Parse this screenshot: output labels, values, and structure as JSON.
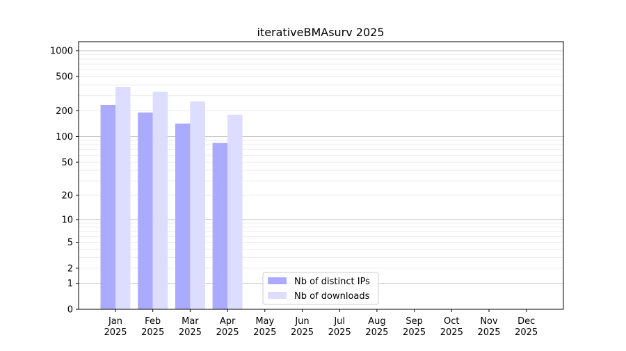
{
  "chart_data": {
    "type": "bar",
    "title": "iterativeBMAsurv 2025",
    "xlabel": "",
    "ylabel": "",
    "y_scale": "log10(1+y)",
    "ylim": [
      0,
      1300
    ],
    "yticks": [
      0,
      1,
      2,
      5,
      10,
      20,
      50,
      100,
      200,
      500,
      1000
    ],
    "grid": true,
    "legend_position": "bottom-center",
    "categories": [
      "Jan\n2025",
      "Feb\n2025",
      "Mar\n2025",
      "Apr\n2025",
      "May\n2025",
      "Jun\n2025",
      "Jul\n2025",
      "Aug\n2025",
      "Sep\n2025",
      "Oct\n2025",
      "Nov\n2025",
      "Dec\n2025"
    ],
    "series": [
      {
        "name": "Nb of distinct IPs",
        "color": "#aaaaff",
        "values": [
          234,
          191,
          142,
          84,
          null,
          null,
          null,
          null,
          null,
          null,
          null,
          null
        ]
      },
      {
        "name": "Nb of downloads",
        "color": "#ddddff",
        "values": [
          380,
          334,
          257,
          180,
          null,
          null,
          null,
          null,
          null,
          null,
          null,
          null
        ]
      }
    ]
  }
}
